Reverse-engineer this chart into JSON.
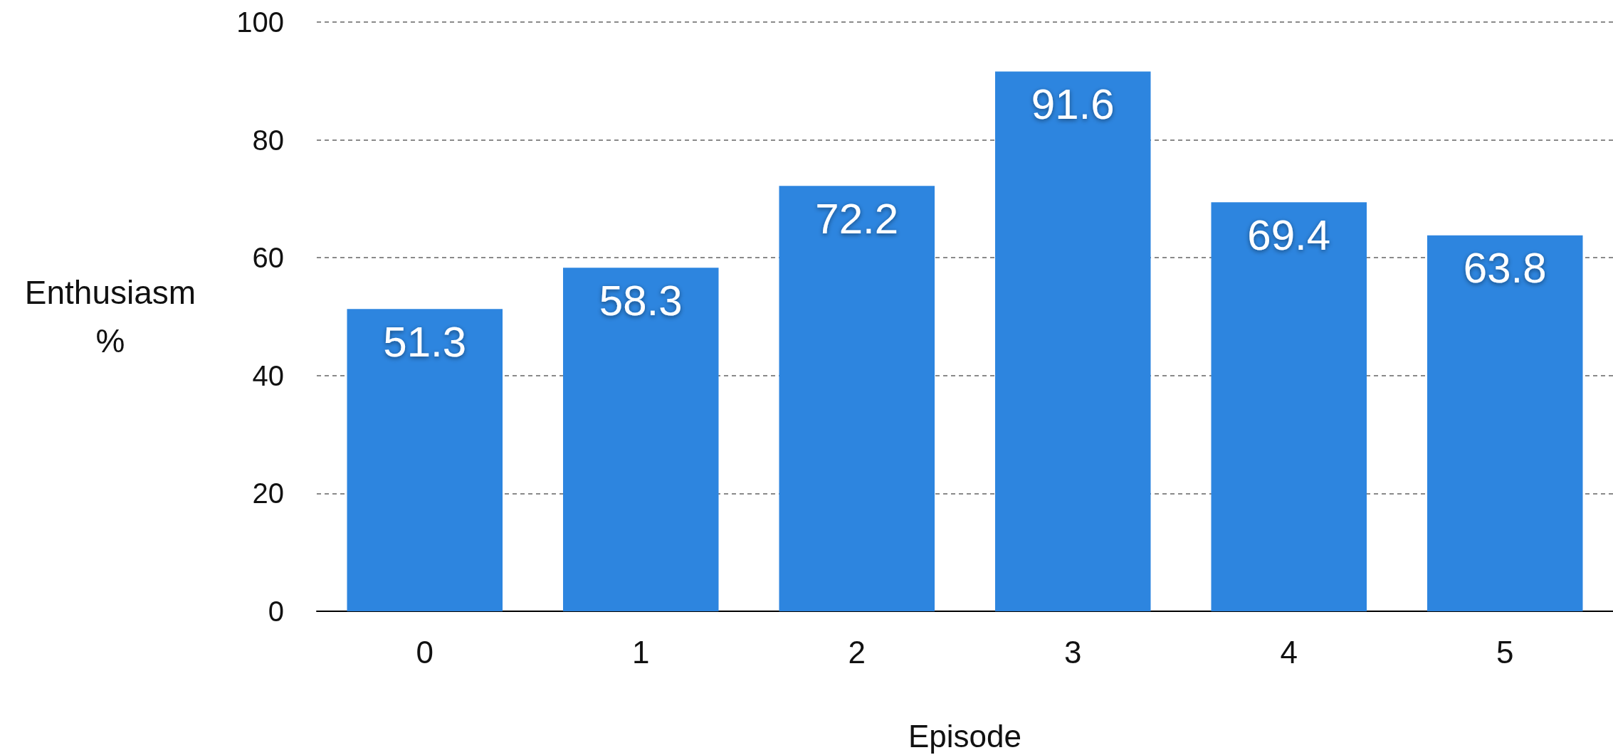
{
  "chart_data": {
    "type": "bar",
    "xlabel": "Episode",
    "ylabel": "Enthusiasm %",
    "categories": [
      "0",
      "1",
      "2",
      "3",
      "4",
      "5"
    ],
    "values": [
      51.3,
      58.3,
      72.2,
      91.6,
      69.4,
      63.8
    ],
    "color": "#2d85df",
    "ylim": [
      0,
      100
    ],
    "yticks": [
      0,
      20,
      40,
      60,
      80,
      100
    ],
    "grid": "y",
    "data_labels": true
  }
}
